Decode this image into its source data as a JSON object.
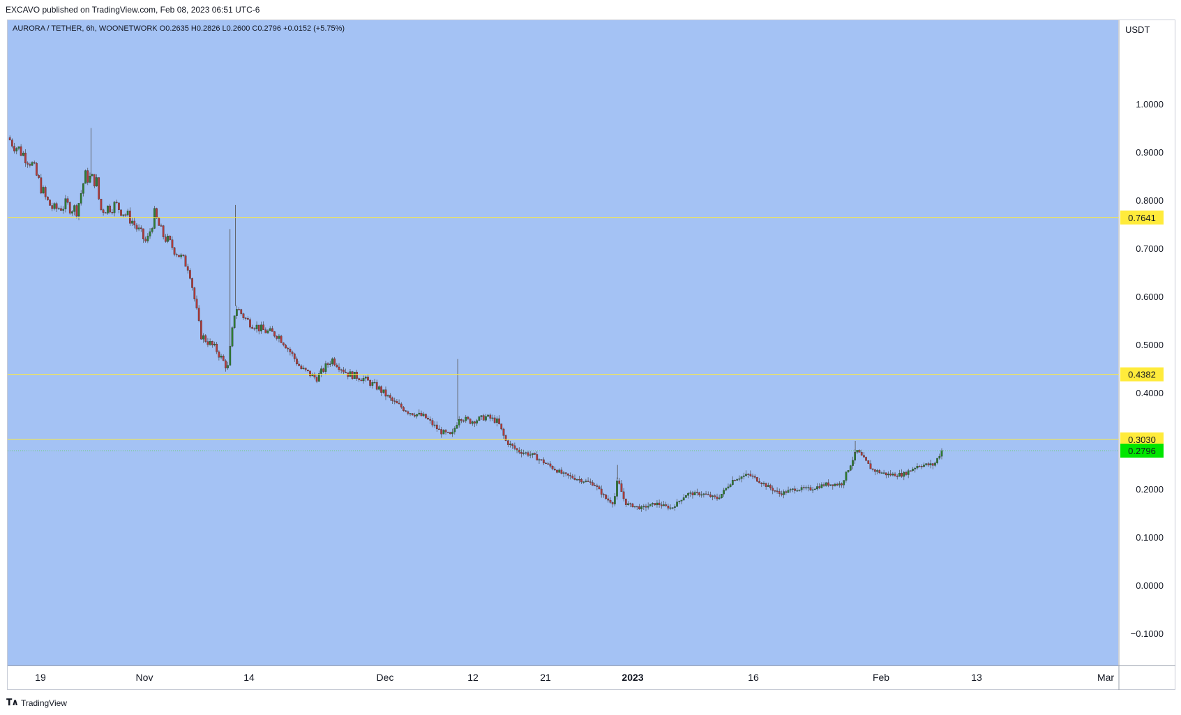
{
  "header": {
    "published_line": "EXCAVO published on TradingView.com, Feb 08, 2023 06:51 UTC-6",
    "symbol_line": "AURORA / TETHER, 6h, WOONETWORK  O0.2635  H0.2826  L0.2600  C0.2796  +0.0152 (+5.75%)",
    "axis_unit": "USDT"
  },
  "footer": {
    "brand_icon": "tradingview-logo-icon",
    "brand_label": "TradingView"
  },
  "colors": {
    "background": "#a4c2f4",
    "up_candle": "#2e7d32",
    "down_candle": "#b23a3a",
    "level_line": "#ffeb3b",
    "last_price": "#00e600"
  },
  "chart_data": {
    "type": "candlestick",
    "timeframe": "6h",
    "ylim": [
      -0.16,
      1.08
    ],
    "y_ticks": [
      "1.0000",
      "0.9000",
      "0.8000",
      "0.7000",
      "0.6000",
      "0.5000",
      "0.4000",
      "0.3000",
      "0.2000",
      "0.1000",
      "0.0000",
      "−0.1000"
    ],
    "x_ticks": [
      "19",
      "Nov",
      "14",
      "Dec",
      "12",
      "21",
      "2023",
      "16",
      "Feb",
      "13",
      "Mar"
    ],
    "horizontal_levels": [
      {
        "value": 0.7641,
        "label": "0.7641",
        "color": "#ffeb3b"
      },
      {
        "value": 0.4382,
        "label": "0.4382",
        "color": "#ffeb3b"
      },
      {
        "value": 0.303,
        "label": "0.3030",
        "color": "#ffeb3b"
      }
    ],
    "last_price": {
      "value": 0.2796,
      "label": "0.2796"
    },
    "ohlc_last": {
      "open": 0.2635,
      "high": 0.2826,
      "low": 0.26,
      "close": 0.2796,
      "change": "+0.0152",
      "change_pct": "+5.75%"
    },
    "price_path": [
      [
        0,
        0.93
      ],
      [
        0.03,
        0.88
      ],
      [
        0.05,
        0.8
      ],
      [
        0.06,
        0.78
      ],
      [
        0.075,
        0.79
      ],
      [
        0.09,
        0.78
      ],
      [
        0.1,
        0.85
      ],
      [
        0.115,
        0.84
      ],
      [
        0.12,
        0.78
      ],
      [
        0.14,
        0.79
      ],
      [
        0.16,
        0.76
      ],
      [
        0.18,
        0.71
      ],
      [
        0.19,
        0.77
      ],
      [
        0.2,
        0.73
      ],
      [
        0.22,
        0.69
      ],
      [
        0.235,
        0.66
      ],
      [
        0.25,
        0.52
      ],
      [
        0.27,
        0.49
      ],
      [
        0.285,
        0.45
      ],
      [
        0.295,
        0.58
      ],
      [
        0.31,
        0.55
      ],
      [
        0.33,
        0.53
      ],
      [
        0.35,
        0.52
      ],
      [
        0.36,
        0.5
      ],
      [
        0.38,
        0.45
      ],
      [
        0.4,
        0.43
      ],
      [
        0.42,
        0.47
      ],
      [
        0.44,
        0.44
      ],
      [
        0.46,
        0.43
      ],
      [
        0.48,
        0.41
      ],
      [
        0.5,
        0.38
      ],
      [
        0.52,
        0.36
      ],
      [
        0.54,
        0.35
      ],
      [
        0.56,
        0.32
      ],
      [
        0.575,
        0.31
      ],
      [
        0.585,
        0.35
      ],
      [
        0.6,
        0.34
      ],
      [
        0.62,
        0.35
      ],
      [
        0.635,
        0.34
      ],
      [
        0.645,
        0.3
      ],
      [
        0.66,
        0.28
      ],
      [
        0.68,
        0.27
      ],
      [
        0.7,
        0.25
      ],
      [
        0.72,
        0.23
      ],
      [
        0.74,
        0.22
      ],
      [
        0.76,
        0.21
      ],
      [
        0.775,
        0.18
      ],
      [
        0.785,
        0.17
      ],
      [
        0.79,
        0.22
      ],
      [
        0.8,
        0.17
      ],
      [
        0.82,
        0.16
      ],
      [
        0.84,
        0.17
      ],
      [
        0.86,
        0.16
      ],
      [
        0.88,
        0.19
      ],
      [
        0.9,
        0.19
      ],
      [
        0.92,
        0.18
      ],
      [
        0.94,
        0.22
      ],
      [
        0.96,
        0.23
      ],
      [
        0.98,
        0.21
      ],
      [
        1.0,
        0.19
      ],
      [
        1.02,
        0.2
      ],
      [
        1.04,
        0.2
      ],
      [
        1.06,
        0.21
      ],
      [
        1.08,
        0.21
      ],
      [
        1.1,
        0.28
      ],
      [
        1.12,
        0.24
      ],
      [
        1.14,
        0.23
      ],
      [
        1.16,
        0.23
      ],
      [
        1.18,
        0.25
      ],
      [
        1.2,
        0.25
      ],
      [
        1.21,
        0.28
      ]
    ],
    "spikes": [
      {
        "t": 0.108,
        "high": 0.95
      },
      {
        "t": 0.288,
        "high": 0.74
      },
      {
        "t": 0.295,
        "high": 0.79
      },
      {
        "t": 0.583,
        "high": 0.47
      },
      {
        "t": 0.79,
        "high": 0.25
      },
      {
        "t": 1.098,
        "high": 0.3
      }
    ]
  }
}
